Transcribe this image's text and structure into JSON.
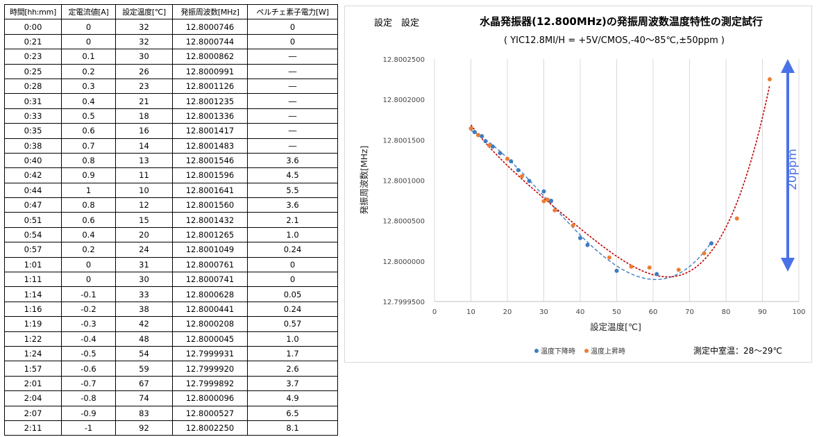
{
  "table": {
    "headers": [
      "時間[hh:mm]",
      "定電流値[A]",
      "設定温度[℃]",
      "発振周波数[MHz]",
      "ペルチェ素子電力[W]"
    ],
    "rows": [
      [
        "0:00",
        "0",
        "32",
        "12.8000746",
        "0"
      ],
      [
        "0:21",
        "0",
        "32",
        "12.8000744",
        "0"
      ],
      [
        "0:23",
        "0.1",
        "30",
        "12.8000862",
        "―"
      ],
      [
        "0:25",
        "0.2",
        "26",
        "12.8000991",
        "―"
      ],
      [
        "0:28",
        "0.3",
        "23",
        "12.8001126",
        "―"
      ],
      [
        "0:31",
        "0.4",
        "21",
        "12.8001235",
        "―"
      ],
      [
        "0:33",
        "0.5",
        "18",
        "12.8001336",
        "―"
      ],
      [
        "0:35",
        "0.6",
        "16",
        "12.8001417",
        "―"
      ],
      [
        "0:38",
        "0.7",
        "14",
        "12.8001483",
        "―"
      ],
      [
        "0:40",
        "0.8",
        "13",
        "12.8001546",
        "3.6"
      ],
      [
        "0:42",
        "0.9",
        "11",
        "12.8001596",
        "4.5"
      ],
      [
        "0:44",
        "1",
        "10",
        "12.8001641",
        "5.5"
      ],
      [
        "0:47",
        "0.8",
        "12",
        "12.8001560",
        "3.6"
      ],
      [
        "0:51",
        "0.6",
        "15",
        "12.8001432",
        "2.1"
      ],
      [
        "0:54",
        "0.4",
        "20",
        "12.8001265",
        "1.0"
      ],
      [
        "0:57",
        "0.2",
        "24",
        "12.8001049",
        "0.24"
      ],
      [
        "1:01",
        "0",
        "31",
        "12.8000761",
        "0"
      ],
      [
        "1:11",
        "0",
        "30",
        "12.8000741",
        "0"
      ],
      [
        "1:14",
        "-0.1",
        "33",
        "12.8000628",
        "0.05"
      ],
      [
        "1:16",
        "-0.2",
        "38",
        "12.8000441",
        "0.24"
      ],
      [
        "1:19",
        "-0.3",
        "42",
        "12.8000208",
        "0.57"
      ],
      [
        "1:22",
        "-0.4",
        "48",
        "12.8000045",
        "1.0"
      ],
      [
        "1:24",
        "-0.5",
        "54",
        "12.7999931",
        "1.7"
      ],
      [
        "1:57",
        "-0.6",
        "59",
        "12.7999920",
        "2.6"
      ],
      [
        "2:01",
        "-0.7",
        "67",
        "12.7999892",
        "3.7"
      ],
      [
        "2:04",
        "-0.8",
        "74",
        "12.8000096",
        "4.9"
      ],
      [
        "2:07",
        "-0.9",
        "83",
        "12.8000527",
        "6.5"
      ],
      [
        "2:11",
        "-1",
        "92",
        "12.8002250",
        "8.1"
      ]
    ]
  },
  "chart_data": {
    "type": "scatter",
    "corner_label": "設定　設定",
    "title": "水晶発振器(12.800MHz)の発振周波数温度特性の測定試行",
    "subtitle": "( YIC12.8MI/H = +5V/CMOS,-40～85℃,±50ppm )",
    "xlabel": "設定温度[℃]",
    "ylabel": "発振周波数[MHz]",
    "xlim": [
      0,
      100
    ],
    "ylim": [
      12.79995,
      12.80025
    ],
    "x_ticks": [
      "0",
      "10",
      "20",
      "30",
      "40",
      "50",
      "60",
      "70",
      "80",
      "90",
      "100"
    ],
    "y_ticks": [
      "12.7999500",
      "12.8000000",
      "12.8000500",
      "12.8001000",
      "12.8001500",
      "12.8002000",
      "12.8002500"
    ],
    "grid": "vertical",
    "legend_position": "bottom",
    "series": [
      {
        "name": "温度下降時",
        "color": "#3E7CC0",
        "points": [
          [
            10,
            12.8001641
          ],
          [
            11,
            12.8001596
          ],
          [
            12,
            12.800156
          ],
          [
            13,
            12.8001546
          ],
          [
            14,
            12.8001483
          ],
          [
            16,
            12.8001417
          ],
          [
            18,
            12.8001336
          ],
          [
            21,
            12.8001235
          ],
          [
            23,
            12.8001126
          ],
          [
            26,
            12.8000991
          ],
          [
            30,
            12.8000862
          ],
          [
            32,
            12.8000746
          ],
          [
            32,
            12.8000744
          ],
          [
            40,
            12.8000285
          ],
          [
            42,
            12.80002
          ],
          [
            50,
            12.799988
          ],
          [
            61,
            12.799984
          ],
          [
            76,
            12.800022
          ]
        ]
      },
      {
        "name": "温度上昇時",
        "color": "#ED7D31",
        "points": [
          [
            10,
            12.8001641
          ],
          [
            12,
            12.800156
          ],
          [
            15,
            12.8001432
          ],
          [
            20,
            12.8001265
          ],
          [
            24,
            12.8001049
          ],
          [
            30,
            12.8000741
          ],
          [
            31,
            12.8000761
          ],
          [
            33,
            12.8000628
          ],
          [
            38,
            12.8000441
          ],
          [
            48,
            12.8000045
          ],
          [
            54,
            12.7999931
          ],
          [
            59,
            12.799992
          ],
          [
            67,
            12.7999892
          ],
          [
            74,
            12.8000096
          ],
          [
            83,
            12.8000527
          ],
          [
            92,
            12.800225
          ]
        ]
      }
    ],
    "trendline_colors": [
      "#3E7CC0",
      "#C00000"
    ],
    "range_arrow_label": "20ppm",
    "range_arrow_color": "#4A72E8",
    "note": "測定中室温：28～29℃"
  }
}
